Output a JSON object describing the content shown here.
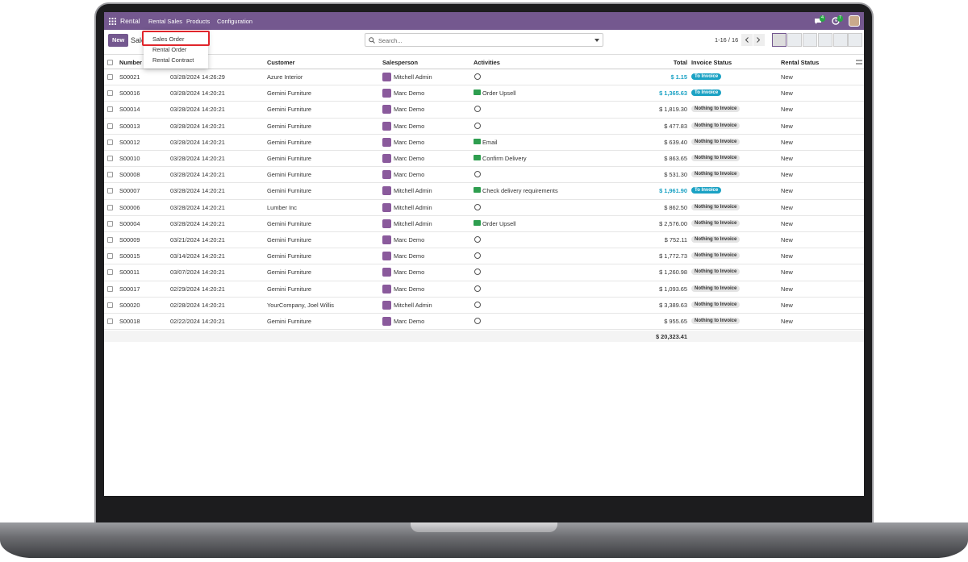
{
  "navbar": {
    "app": "Rental",
    "menus": [
      "Rental Sales",
      "Products",
      "Configuration"
    ],
    "message_count": "4",
    "activity_count": "7"
  },
  "dropdown": {
    "items": [
      "Sales Order",
      "Rental Order",
      "Rental Contract"
    ]
  },
  "control": {
    "new_button": "New",
    "breadcrumb": "Sales",
    "search_placeholder": "Search...",
    "pager": "1-16 / 16"
  },
  "table": {
    "columns": [
      "Number",
      "Customer",
      "Salesperson",
      "Activities",
      "Total",
      "Invoice Status",
      "Rental Status"
    ],
    "rows": [
      {
        "number": "S00021",
        "date": "03/28/2024 14:26:29",
        "customer": "Azure Interior",
        "salesperson": "Mitchell Admin",
        "activity": null,
        "total": "$ 1.15",
        "invoice_status": "To Invoice",
        "status_color": "#1ba2c4",
        "rental_status": "New"
      },
      {
        "number": "S00016",
        "date": "03/28/2024 14:20:21",
        "customer": "Gemini Furniture",
        "salesperson": "Marc Demo",
        "activity": "Order Upsell",
        "total": "$ 1,365.63",
        "invoice_status": "To Invoice",
        "status_color": "#1ba2c4",
        "rental_status": "New"
      },
      {
        "number": "S00014",
        "date": "03/28/2024 14:20:21",
        "customer": "Gemini Furniture",
        "salesperson": "Marc Demo",
        "activity": null,
        "total": "$ 1,819.30",
        "invoice_status": "Nothing to Invoice",
        "status_color": "#e4e4e4",
        "rental_status": "New"
      },
      {
        "number": "S00013",
        "date": "03/28/2024 14:20:21",
        "customer": "Gemini Furniture",
        "salesperson": "Marc Demo",
        "activity": null,
        "total": "$ 477.83",
        "invoice_status": "Nothing to Invoice",
        "status_color": "#e4e4e4",
        "rental_status": "New"
      },
      {
        "number": "S00012",
        "date": "03/28/2024 14:20:21",
        "customer": "Gemini Furniture",
        "salesperson": "Marc Demo",
        "activity": "Email",
        "total": "$ 639.40",
        "invoice_status": "Nothing to Invoice",
        "status_color": "#e4e4e4",
        "rental_status": "New"
      },
      {
        "number": "S00010",
        "date": "03/28/2024 14:20:21",
        "customer": "Gemini Furniture",
        "salesperson": "Marc Demo",
        "activity": "Confirm Delivery",
        "total": "$ 863.65",
        "invoice_status": "Nothing to Invoice",
        "status_color": "#e4e4e4",
        "rental_status": "New"
      },
      {
        "number": "S00008",
        "date": "03/28/2024 14:20:21",
        "customer": "Gemini Furniture",
        "salesperson": "Marc Demo",
        "activity": null,
        "total": "$ 531.30",
        "invoice_status": "Nothing to Invoice",
        "status_color": "#e4e4e4",
        "rental_status": "New"
      },
      {
        "number": "S00007",
        "date": "03/28/2024 14:20:21",
        "customer": "Gemini Furniture",
        "salesperson": "Mitchell Admin",
        "activity": "Check delivery requirements",
        "total": "$ 1,961.90",
        "invoice_status": "To Invoice",
        "status_color": "#1ba2c4",
        "rental_status": "New"
      },
      {
        "number": "S00006",
        "date": "03/28/2024 14:20:21",
        "customer": "Lumber Inc",
        "salesperson": "Mitchell Admin",
        "activity": null,
        "total": "$ 862.50",
        "invoice_status": "Nothing to Invoice",
        "status_color": "#e4e4e4",
        "rental_status": "New"
      },
      {
        "number": "S00004",
        "date": "03/28/2024 14:20:21",
        "customer": "Gemini Furniture",
        "salesperson": "Mitchell Admin",
        "activity": "Order Upsell",
        "total": "$ 2,576.00",
        "invoice_status": "Nothing to Invoice",
        "status_color": "#e4e4e4",
        "rental_status": "New"
      },
      {
        "number": "S00009",
        "date": "03/21/2024 14:20:21",
        "customer": "Gemini Furniture",
        "salesperson": "Marc Demo",
        "activity": null,
        "total": "$ 752.11",
        "invoice_status": "Nothing to Invoice",
        "status_color": "#e4e4e4",
        "rental_status": "New"
      },
      {
        "number": "S00015",
        "date": "03/14/2024 14:20:21",
        "customer": "Gemini Furniture",
        "salesperson": "Marc Demo",
        "activity": null,
        "total": "$ 1,772.73",
        "invoice_status": "Nothing to Invoice",
        "status_color": "#e4e4e4",
        "rental_status": "New"
      },
      {
        "number": "S00011",
        "date": "03/07/2024 14:20:21",
        "customer": "Gemini Furniture",
        "salesperson": "Marc Demo",
        "activity": null,
        "total": "$ 1,260.98",
        "invoice_status": "Nothing to Invoice",
        "status_color": "#e4e4e4",
        "rental_status": "New"
      },
      {
        "number": "S00017",
        "date": "02/29/2024 14:20:21",
        "customer": "Gemini Furniture",
        "salesperson": "Marc Demo",
        "activity": null,
        "total": "$ 1,093.65",
        "invoice_status": "Nothing to Invoice",
        "status_color": "#e4e4e4",
        "rental_status": "New"
      },
      {
        "number": "S00020",
        "date": "02/28/2024 14:20:21",
        "customer": "YourCompany, Joel Willis",
        "salesperson": "Mitchell Admin",
        "activity": null,
        "total": "$ 3,389.63",
        "invoice_status": "Nothing to Invoice",
        "status_color": "#e4e4e4",
        "rental_status": "New"
      },
      {
        "number": "S00018",
        "date": "02/22/2024 14:20:21",
        "customer": "Gemini Furniture",
        "salesperson": "Marc Demo",
        "activity": null,
        "total": "$ 955.65",
        "invoice_status": "Nothing to Invoice",
        "status_color": "#e4e4e4",
        "rental_status": "New"
      }
    ],
    "total": "$ 20,323.41"
  }
}
